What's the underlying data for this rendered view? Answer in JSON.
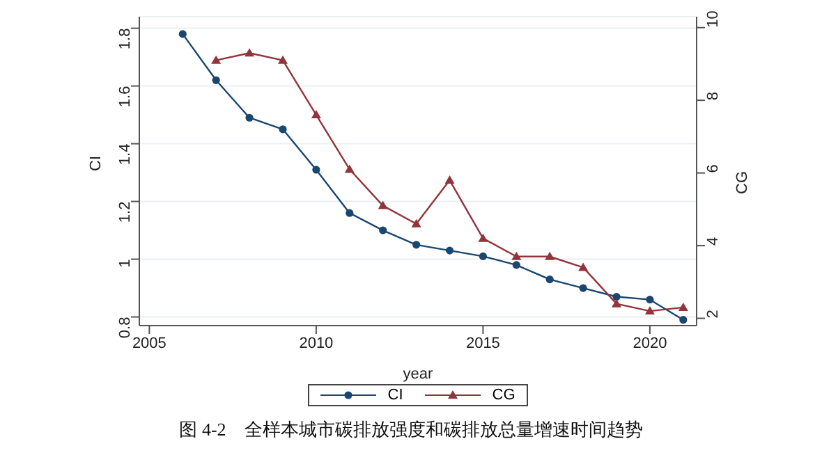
{
  "chart_data": {
    "type": "line",
    "xlabel": "year",
    "ylabel": "CI",
    "y2label": "CG",
    "x": [
      2006,
      2007,
      2008,
      2009,
      2010,
      2011,
      2012,
      2013,
      2014,
      2015,
      2016,
      2017,
      2018,
      2019,
      2020,
      2021
    ],
    "series": [
      {
        "name": "CI",
        "color": "#1a476f",
        "marker": "circle",
        "values": [
          1.78,
          1.62,
          1.49,
          1.45,
          1.31,
          1.16,
          1.1,
          1.05,
          1.03,
          1.01,
          0.98,
          0.93,
          0.9,
          0.87,
          0.86,
          0.79
        ]
      },
      {
        "name": "CG",
        "color": "#90353b",
        "marker": "triangle",
        "axis": "y2",
        "values": [
          null,
          9.1,
          9.3,
          9.1,
          7.6,
          6.1,
          5.1,
          4.6,
          5.8,
          4.2,
          3.7,
          3.7,
          3.4,
          2.4,
          2.2,
          2.3
        ]
      }
    ],
    "xlim": [
      2004.7,
      2021.4
    ],
    "xticks": [
      2005,
      2010,
      2015,
      2020
    ],
    "ylim": [
      0.77,
      1.84
    ],
    "yticks": [
      0.8,
      1,
      1.2,
      1.4,
      1.6,
      1.8
    ],
    "y2lim": [
      1.8,
      10.3
    ],
    "y2ticks": [
      2,
      4,
      6,
      8,
      10
    ],
    "grid": "y",
    "legend": "bottom",
    "line_style": "solid",
    "annotations": [
      "图 4-2　全样本城市碳排放强度和碳排放总量增速时间趋势"
    ]
  }
}
